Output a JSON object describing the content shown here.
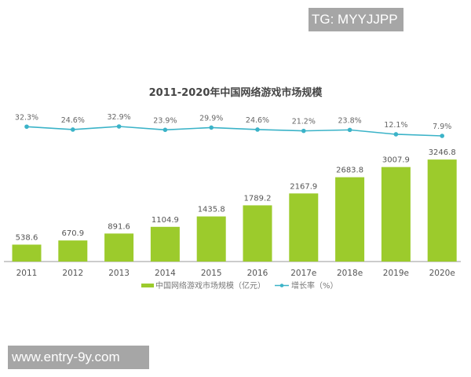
{
  "watermarks": {
    "top_right": "TG: MYYJJPP",
    "bottom_left": "www.entry-9y.com"
  },
  "chart_data": {
    "type": "bar",
    "title": "2011-2020年中国网络游戏市场规模",
    "categories": [
      "2011",
      "2012",
      "2013",
      "2014",
      "2015",
      "2016",
      "2017e",
      "2018e",
      "2019e",
      "2020e"
    ],
    "series": [
      {
        "name": "中国网络游戏市场规模（亿元）",
        "type": "bar",
        "color": "#9ccb2c",
        "values": [
          538.6,
          670.9,
          891.6,
          1104.9,
          1435.8,
          1789.2,
          2167.9,
          2683.8,
          3007.9,
          3246.8
        ]
      },
      {
        "name": "增长率（%）",
        "type": "line",
        "color": "#3bb3c8",
        "values": [
          32.3,
          24.6,
          32.9,
          23.9,
          29.9,
          24.6,
          21.2,
          23.8,
          12.1,
          7.9
        ]
      }
    ],
    "bar_labels": [
      "538.6",
      "670.9",
      "891.6",
      "1104.9",
      "1435.8",
      "1789.2",
      "2167.9",
      "2683.8",
      "3007.9",
      "3246.8"
    ],
    "line_labels": [
      "32.3%",
      "24.6%",
      "32.9%",
      "23.9%",
      "29.9%",
      "24.6%",
      "21.2%",
      "23.8%",
      "12.1%",
      "7.9%"
    ],
    "xlabel": "",
    "ylabel": "",
    "grid": false,
    "legend_position": "bottom"
  },
  "legend": {
    "bar_label": "中国网络游戏市场规模（亿元）",
    "line_label": "增长率（%）"
  }
}
